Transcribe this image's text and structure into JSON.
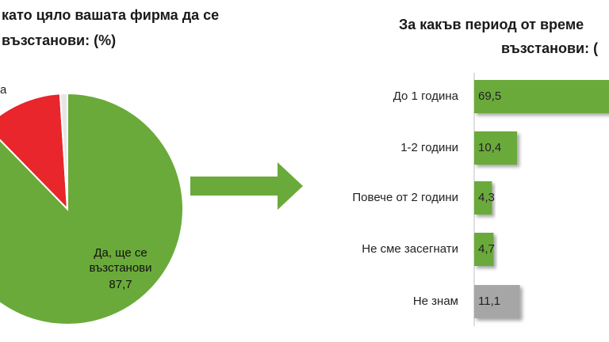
{
  "chart_data": [
    {
      "type": "pie",
      "title": [
        "като цяло вашата фирма да се",
        "възстанови: (%)"
      ],
      "categories": [
        "Да, ще се възстанови",
        null,
        "а"
      ],
      "values": [
        87.7,
        11.3,
        1.0
      ],
      "value_labels": [
        "87,7",
        null,
        null
      ],
      "colors": [
        "#6aaa3a",
        "#e8262b",
        "#e6e6e6"
      ]
    },
    {
      "type": "hbar",
      "title": [
        "За какъв период от време",
        "възстанови: ("
      ],
      "categories": [
        "До 1 година",
        "1-2 години",
        "Повече от 2 години",
        "Не сме засегнати",
        "Не знам"
      ],
      "values": [
        69.5,
        10.4,
        4.3,
        4.7,
        11.1
      ],
      "value_labels": [
        "69,5",
        "10,4",
        "4,3",
        "4,7",
        "11,1"
      ],
      "colors": [
        "#6aaa3a",
        "#6aaa3a",
        "#6aaa3a",
        "#6aaa3a",
        "#a6a6a6"
      ],
      "xlim": [
        0,
        40
      ]
    }
  ]
}
